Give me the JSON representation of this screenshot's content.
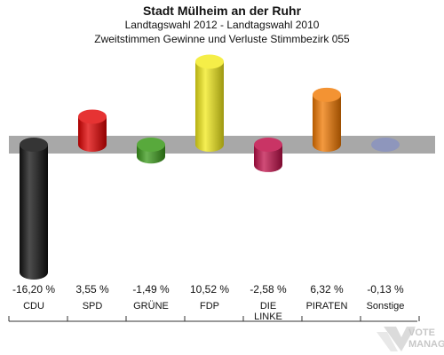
{
  "header": {
    "title": "Stadt Mülheim an der Ruhr",
    "subtitle": "Landtagswahl 2012 - Landtagswahl 2010",
    "subtitle2": "Zweitstimmen Gewinne und Verluste Stimmbezirk 055"
  },
  "watermark": {
    "text": "VOTE MANAGER"
  },
  "chart_data": {
    "type": "bar",
    "title": "Stadt Mülheim an der Ruhr",
    "subtitle": "Landtagswahl 2012 - Landtagswahl 2010 / Zweitstimmen Gewinne und Verluste Stimmbezirk 055",
    "categories": [
      "CDU",
      "SPD",
      "GRÜNE",
      "FDP",
      "DIE LINKE",
      "PIRATEN",
      "Sonstige"
    ],
    "category_lines": [
      [
        "CDU"
      ],
      [
        "SPD"
      ],
      [
        "GRÜNE"
      ],
      [
        "FDP"
      ],
      [
        "DIE",
        "LINKE"
      ],
      [
        "PIRATEN"
      ],
      [
        "Sonstige"
      ]
    ],
    "values": [
      -16.2,
      3.55,
      -1.49,
      10.52,
      -2.58,
      6.32,
      -0.13
    ],
    "value_labels": [
      "-16,20 %",
      "3,55 %",
      "-1,49 %",
      "10,52 %",
      "-2,58 %",
      "6,32 %",
      "-0,13 %"
    ],
    "colors": [
      "#111111",
      "#e00000",
      "#3a9a1a",
      "#f2ea1a",
      "#c0104a",
      "#f07800",
      "#8890b8"
    ],
    "baseline_color": "#a8a8a8",
    "grid": false,
    "legend": "none"
  }
}
